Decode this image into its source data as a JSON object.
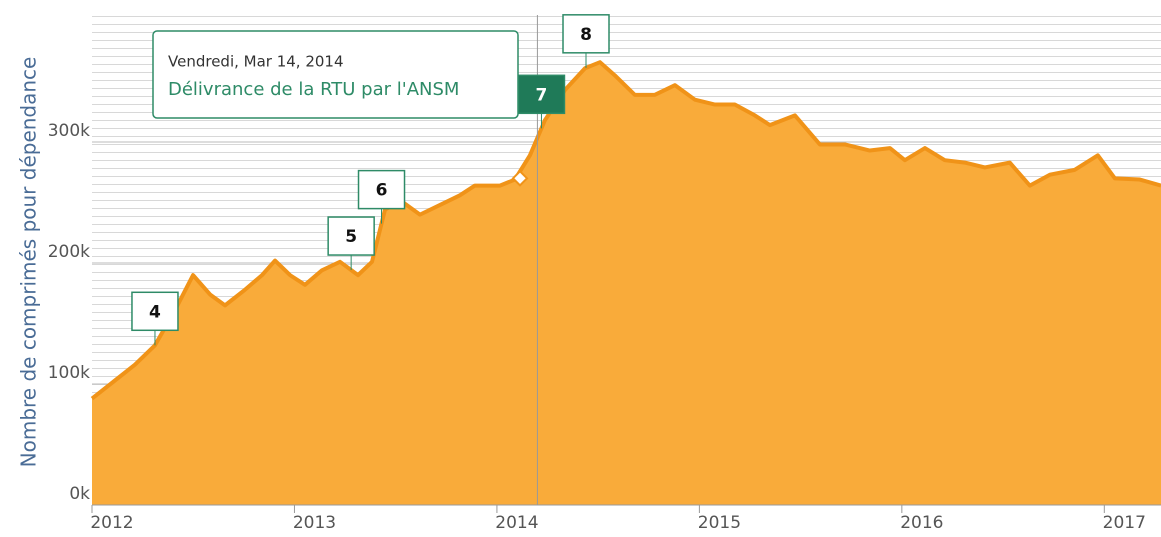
{
  "chart_data": {
    "type": "area",
    "y_axis_label": "Nombre de comprimés pour dépendance",
    "xlim": [
      2012,
      2017.28
    ],
    "ylim": [
      0,
      405000
    ],
    "xticks": [
      2012,
      2013,
      2014,
      2015,
      2016,
      2017
    ],
    "yticks": [
      {
        "value": 0,
        "label": "0k"
      },
      {
        "value": 100000,
        "label": "100k"
      },
      {
        "value": 200000,
        "label": "200k"
      },
      {
        "value": 300000,
        "label": "300k"
      }
    ],
    "grid": true,
    "series": [
      {
        "color": "#f9ab3a",
        "line_color": "#f09318",
        "x": [
          2012.0,
          2012.114,
          2012.212,
          2012.311,
          2012.41,
          2012.499,
          2012.583,
          2012.657,
          2012.756,
          2012.84,
          2012.904,
          2012.978,
          2013.052,
          2013.136,
          2013.225,
          2013.314,
          2013.383,
          2013.447,
          2013.521,
          2013.62,
          2013.719,
          2013.817,
          2013.891,
          2014.015,
          2014.089,
          2014.163,
          2014.237,
          2014.336,
          2014.435,
          2014.509,
          2014.583,
          2014.681,
          2014.78,
          2014.879,
          2014.978,
          2015.077,
          2015.175,
          2015.274,
          2015.348,
          2015.472,
          2015.595,
          2015.719,
          2015.842,
          2015.941,
          2016.015,
          2016.114,
          2016.212,
          2016.311,
          2016.41,
          2016.533,
          2016.632,
          2016.731,
          2016.854,
          2016.968,
          2017.052,
          2017.175,
          2017.28
        ],
        "values": [
          88000,
          103000,
          116000,
          132000,
          161000,
          190000,
          174000,
          165000,
          178000,
          190000,
          202000,
          190000,
          182000,
          194000,
          201000,
          190000,
          201000,
          244000,
          252000,
          240000,
          248000,
          256000,
          264000,
          264000,
          269000,
          289000,
          318000,
          343000,
          361000,
          366000,
          355000,
          339000,
          339000,
          347000,
          335000,
          331000,
          331000,
          322000,
          314000,
          322000,
          298000,
          298000,
          293000,
          295000,
          285000,
          295000,
          285000,
          283000,
          279000,
          283000,
          264000,
          273000,
          277000,
          289000,
          270000,
          269000,
          264000
        ]
      }
    ],
    "annotations": [
      {
        "text": "4",
        "x": 2012.311
      },
      {
        "text": "5",
        "x": 2013.28
      },
      {
        "text": "6",
        "x": 2013.43
      },
      {
        "text": "7",
        "x": 2014.22,
        "active": true
      },
      {
        "text": "8",
        "x": 2014.44
      }
    ],
    "hover_point": {
      "x": 2014.114,
      "y": 270000
    },
    "crosshair_x": 2014.2,
    "tooltip": {
      "date": "Vendredi, Mar 14, 2014",
      "text": "Délivrance de la RTU par l'ANSM"
    }
  }
}
